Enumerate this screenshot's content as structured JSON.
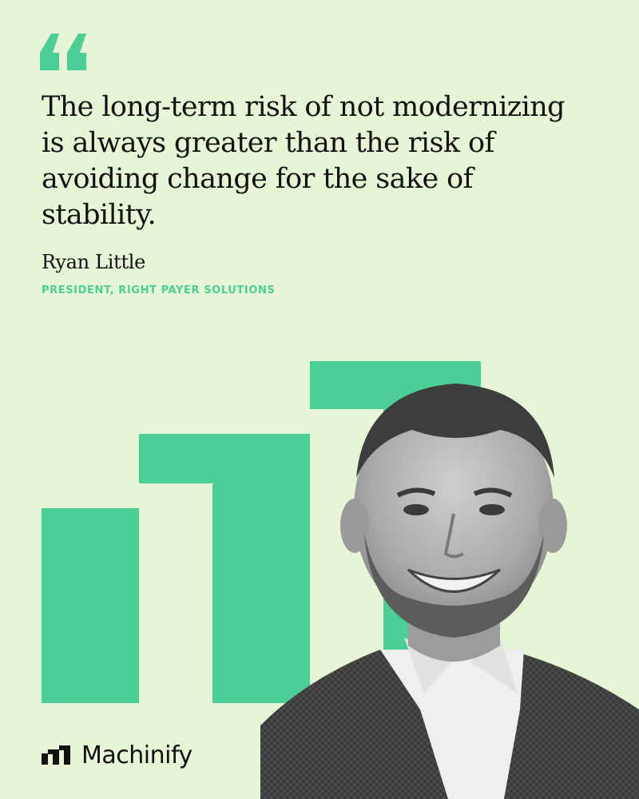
{
  "quote": {
    "lines": [
      "The long-term risk of not modernizing",
      "is always greater than the risk of",
      "avoiding change for the sake of",
      "stability."
    ]
  },
  "author": {
    "name": "Ryan Little",
    "title": "PRESIDENT, RIGHT PAYER SOLUTIONS"
  },
  "brand": {
    "name": "Machinify",
    "icon": "machinify-logo-icon"
  },
  "icons": {
    "quote": "quote-mark-icon"
  },
  "colors": {
    "background": "#e6f5d6",
    "accent": "#4bcf96",
    "text": "#111111"
  }
}
